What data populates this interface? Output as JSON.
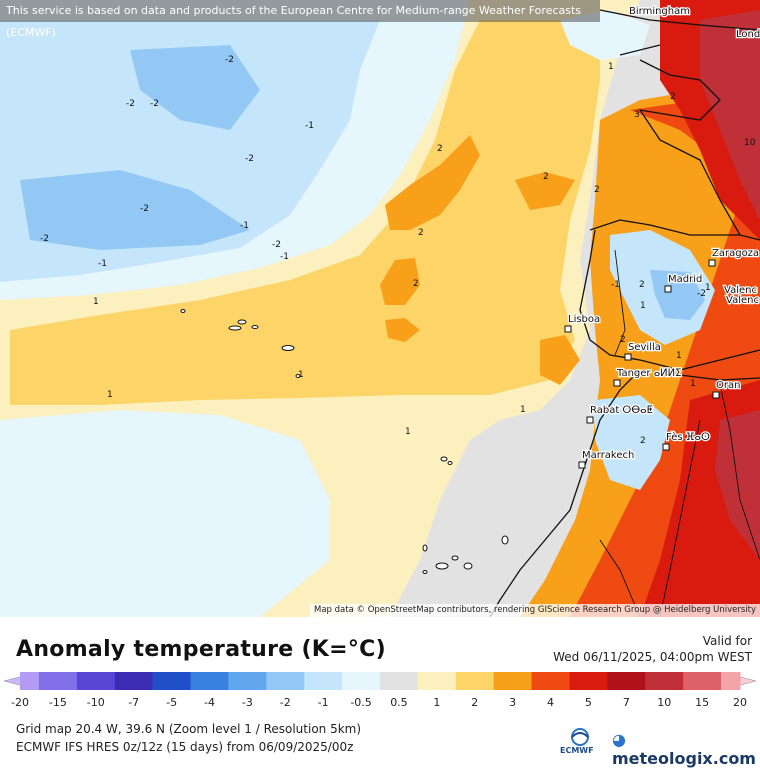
{
  "notice": "This service is based on data and products of the European Centre for Medium-range Weather Forecasts (ECMWF)",
  "attribution": "Map data © OpenStreetMap contributors, rendering GIScience Research Group @ Heidelberg University",
  "title": "Anomaly temperature (K=°C)",
  "valid_label": "Valid for",
  "valid_time": "Wed 06/11/2025, 04:00pm WEST",
  "legend": {
    "labels": [
      "-20",
      "-15",
      "-10",
      "-7",
      "-5",
      "-4",
      "-3",
      "-2",
      "-1",
      "-0.5",
      "0.5",
      "1",
      "2",
      "3",
      "4",
      "5",
      "7",
      "10",
      "15",
      "20"
    ],
    "colors": [
      "#b39af5",
      "#8370e8",
      "#5a46d6",
      "#3a2db4",
      "#1f50c8",
      "#3a80e0",
      "#62a6ee",
      "#93c8f4",
      "#c5e6fa",
      "#e6f6fd",
      "#e2e2e2",
      "#fcf0bf",
      "#fcd467",
      "#f8a019",
      "#ee4a12",
      "#d91a0e",
      "#b0121a",
      "#bf3038",
      "#de6068",
      "#f4a3a8"
    ],
    "low_arrow_color": "#c9b8fb",
    "high_arrow_color": "#f9cfd3"
  },
  "footer_line1": "Grid map 20.4 W, 39.6 N (Zoom level 1 / Resolution 5km)",
  "footer_line2": "ECMWF IFS HRES 0z/12z (15 days) from 06/09/2025/00z",
  "ecmwf_logo_text": "ECMWF",
  "meteologix_logo_text": "meteologix.com",
  "map": {
    "cities": [
      {
        "name": "Birmingham"
      },
      {
        "name": "Lond"
      },
      {
        "name": "Zaragoza"
      },
      {
        "name": "Madrid"
      },
      {
        "name": "Valenc"
      },
      {
        "name": "Valenc"
      },
      {
        "name": "Lisboa"
      },
      {
        "name": "Sevilla"
      },
      {
        "name": "Tanger ⴰⵍⵍⵉ"
      },
      {
        "name": "Oran"
      },
      {
        "name": "Rabat ⵔⴱⴰⵟ"
      },
      {
        "name": "Fès ⴼⴰⵙ"
      },
      {
        "name": "Marrakech"
      }
    ],
    "contour_labels": [
      "-2",
      "-2",
      "-2",
      "-1",
      "-2",
      "-2",
      "-1",
      "-2",
      "-1",
      "-1",
      "-2",
      "1",
      "1",
      "1",
      "1",
      "1",
      "1",
      "1",
      "2",
      "2",
      "2",
      "2",
      "2",
      "2",
      "3",
      "2",
      "10",
      "1",
      "2",
      "2",
      "-1",
      "-2",
      "1",
      "2",
      "2",
      "1"
    ],
    "colors": {
      "ocean_gray": "#e2e2e2",
      "light_blue": "#c5e6fa",
      "pale_blue": "#e6f6fd",
      "pale_yellow": "#fcf0bf",
      "yellow": "#fcd467",
      "orange": "#f8a019",
      "red_orange": "#ee4a12",
      "red": "#d91a0e",
      "dark_red": "#b0121a",
      "rose": "#bf3038"
    }
  }
}
